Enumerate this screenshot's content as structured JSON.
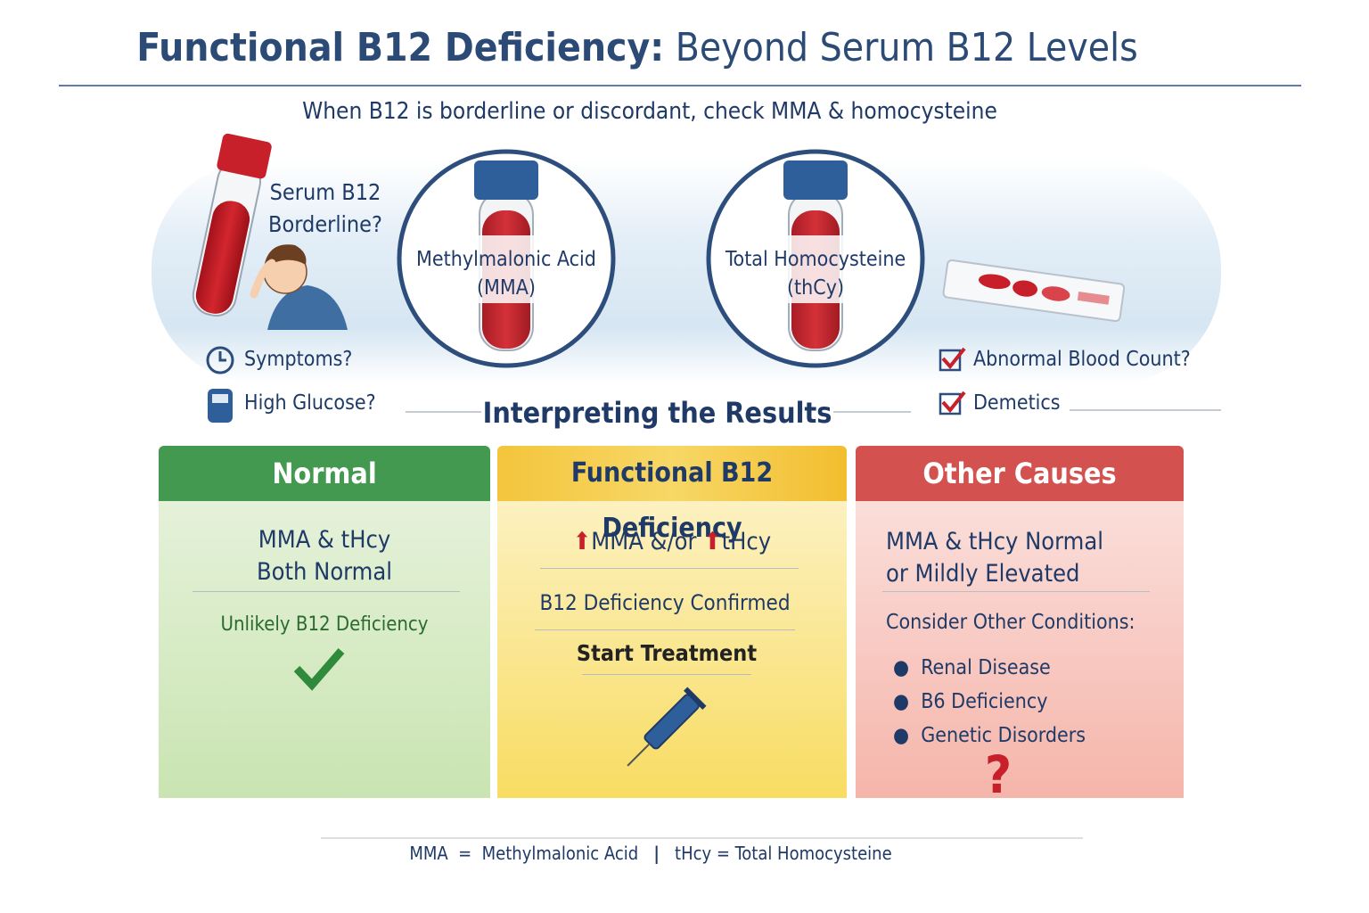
{
  "header": {
    "title_bold": "Functional B12 Deficiency:",
    "title_rest": "Beyond Serum B12 Levels",
    "subtitle": "When B12 is borderline or discordant, check MMA & homocysteine"
  },
  "intro": {
    "serum_lines": [
      "Serum B12",
      "Borderline?"
    ],
    "left_checks": [
      "Symptoms?",
      "High Glucose?"
    ],
    "tests": [
      {
        "lines": [
          "Methylmalonic Acid",
          "(MMA)"
        ]
      },
      {
        "lines": [
          "Total Homocysteine",
          "(thCy)"
        ]
      }
    ],
    "right_checks": [
      "Abnormal Blood Count?",
      "Demetics"
    ]
  },
  "section_title": "Interpreting the Results",
  "cards": [
    {
      "title": "Normal",
      "result_lines": [
        "MMA & tHcy",
        "Both Normal"
      ],
      "note": "Unlikely B12 Deficiency"
    },
    {
      "title": "Functional B12 Deficiency",
      "result_parts": [
        "MMA &/or",
        "tHcy"
      ],
      "note": "B12 Deficiency Confirmed",
      "action": "Start Treatment"
    },
    {
      "title": "Other Causes",
      "result_lines": [
        "MMA & tHcy Normal",
        "or Mildly Elevated"
      ],
      "note": "Consider Other Conditions:",
      "items": [
        "Renal Disease",
        "B6 Deficiency",
        "Genetic Disorders"
      ],
      "mark": "?"
    }
  ],
  "footer": {
    "left": "MMA  =  Methylmalonic Acid",
    "separator": "|",
    "right": "tHcy = Total Homocysteine"
  }
}
